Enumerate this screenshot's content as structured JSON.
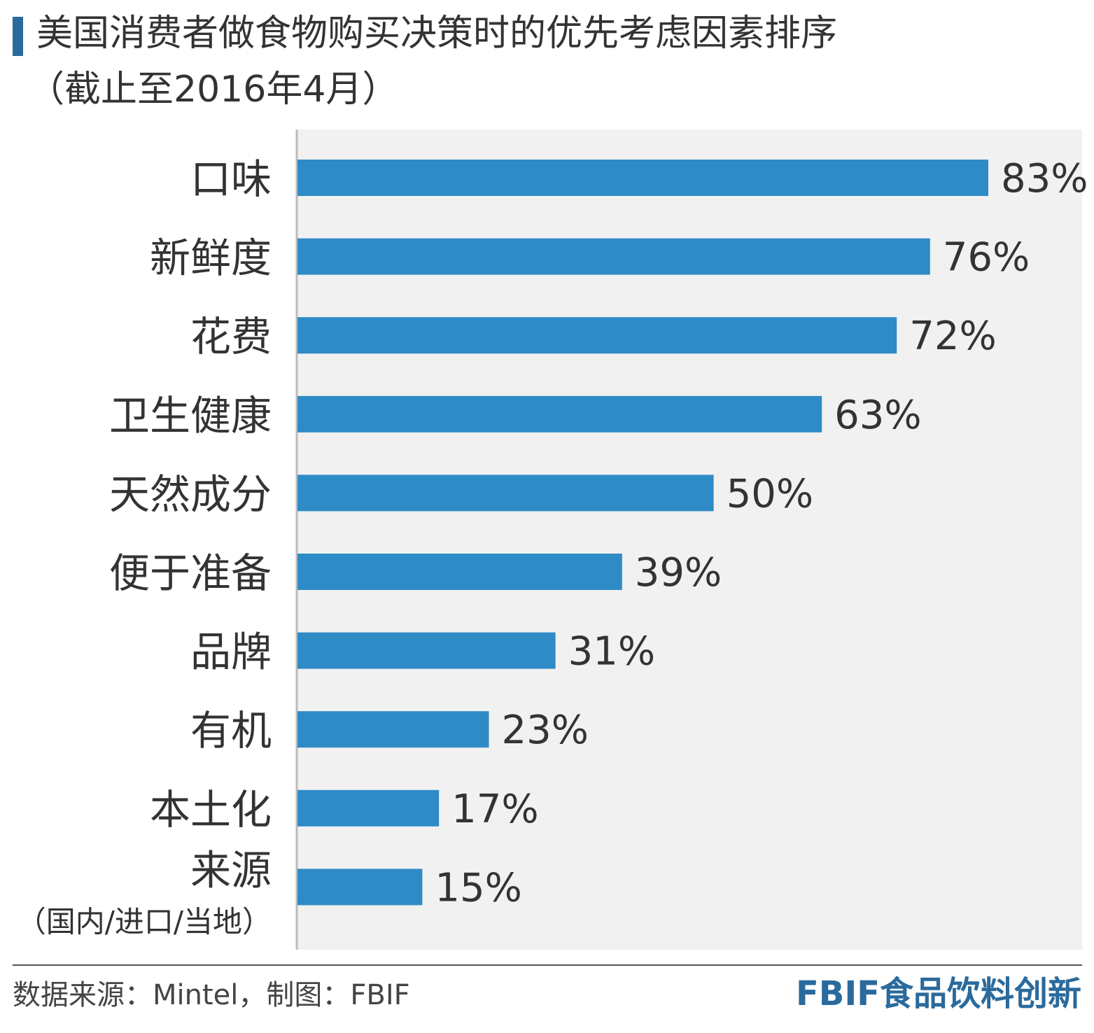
{
  "header": {
    "title_line1": "美国消费者做食物购买决策时的优先考虑因素排序",
    "title_line2": "（截止至2016年4月）"
  },
  "chart_data": {
    "type": "bar",
    "orientation": "horizontal",
    "categories": [
      "口味",
      "新鲜度",
      "花费",
      "卫生健康",
      "天然成分",
      "便于准备",
      "品牌",
      "有机",
      "本土化",
      "来源"
    ],
    "category_sublabels": [
      "",
      "",
      "",
      "",
      "",
      "",
      "",
      "",
      "",
      "（国内/进口/当地）"
    ],
    "values": [
      83,
      76,
      72,
      63,
      50,
      39,
      31,
      23,
      17,
      15
    ],
    "value_labels": [
      "83%",
      "76%",
      "72%",
      "63%",
      "50%",
      "39%",
      "31%",
      "23%",
      "17%",
      "15%"
    ],
    "value_suffix": "%",
    "xlim": [
      0,
      83
    ],
    "grid": false,
    "bar_color": "#2e8bc6",
    "background_color": "#f1f1f1"
  },
  "footer": {
    "source": "数据来源：Mintel，制图：FBIF",
    "brand": "FBIF食品饮料创新",
    "brand_color": "#2a6a9c"
  }
}
